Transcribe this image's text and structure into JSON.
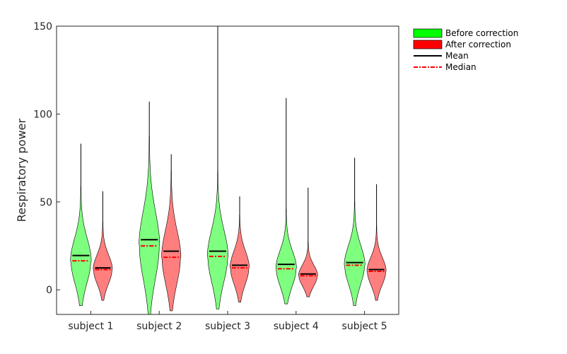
{
  "chart_data": {
    "type": "violin",
    "title": "",
    "xlabel": "",
    "ylabel": "Respiratory power",
    "ylim": [
      -14,
      150
    ],
    "yticks": [
      0,
      50,
      100,
      150
    ],
    "grid": false,
    "legend_position": "top-right outside",
    "categories": [
      "subject 1",
      "subject 2",
      "subject 3",
      "subject 4",
      "subject 5"
    ],
    "series": [
      {
        "name": "Before correction",
        "color": "#00ff00",
        "fill_alpha": 0.5,
        "min": [
          -9,
          -14,
          -11,
          -8,
          -9
        ],
        "max": [
          83,
          107,
          151,
          109,
          75
        ],
        "mean": [
          19.5,
          28.5,
          22,
          14.5,
          15.5
        ],
        "median": [
          16.5,
          25,
          19,
          12,
          14
        ]
      },
      {
        "name": "After correction",
        "color": "#ff0000",
        "fill_alpha": 0.5,
        "min": [
          -6,
          -12,
          -7,
          -4,
          -6
        ],
        "max": [
          56,
          77,
          53,
          58,
          60
        ],
        "mean": [
          12.5,
          22,
          14,
          9,
          11.5
        ],
        "median": [
          11.5,
          18.5,
          12.5,
          8,
          10.5
        ]
      }
    ],
    "legend": [
      {
        "label": "Before correction",
        "kind": "fill",
        "color": "#00ff00"
      },
      {
        "label": "After correction",
        "kind": "fill",
        "color": "#ff0000"
      },
      {
        "label": "Mean",
        "kind": "line",
        "color": "#000000",
        "dash": "solid"
      },
      {
        "label": "Median",
        "kind": "line",
        "color": "#ff0000",
        "dash": "dashdot"
      }
    ]
  }
}
